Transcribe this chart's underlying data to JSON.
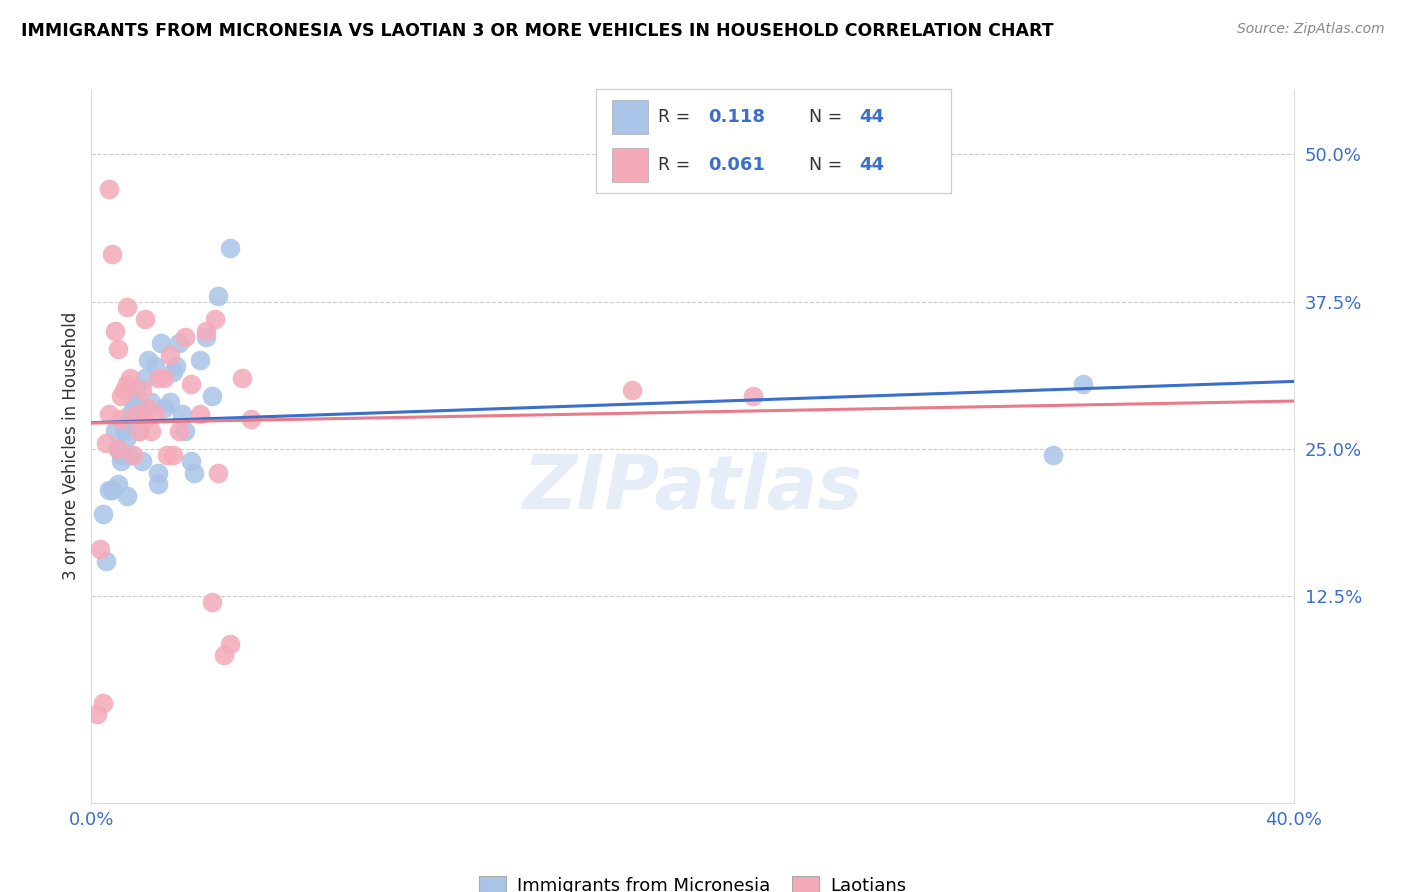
{
  "title": "IMMIGRANTS FROM MICRONESIA VS LAOTIAN 3 OR MORE VEHICLES IN HOUSEHOLD CORRELATION CHART",
  "source": "Source: ZipAtlas.com",
  "ylabel": "3 or more Vehicles in Household",
  "xlim": [
    0.0,
    0.4
  ],
  "ylim": [
    -0.05,
    0.555
  ],
  "yticks": [
    0.125,
    0.25,
    0.375,
    0.5
  ],
  "ytick_labels": [
    "12.5%",
    "25.0%",
    "37.5%",
    "50.0%"
  ],
  "blue_R": 0.118,
  "blue_N": 44,
  "pink_R": 0.061,
  "pink_N": 44,
  "blue_color": "#aac4e8",
  "pink_color": "#f4aab9",
  "blue_line_color": "#3a6fcc",
  "pink_line_color": "#e87a8a",
  "watermark": "ZIPatlas",
  "legend_label_blue": "Immigrants from Micronesia",
  "legend_label_pink": "Laotians",
  "blue_x": [
    0.004,
    0.005,
    0.006,
    0.007,
    0.008,
    0.009,
    0.009,
    0.01,
    0.01,
    0.011,
    0.011,
    0.012,
    0.012,
    0.013,
    0.013,
    0.014,
    0.015,
    0.015,
    0.016,
    0.016,
    0.017,
    0.018,
    0.019,
    0.02,
    0.021,
    0.022,
    0.022,
    0.023,
    0.024,
    0.026,
    0.027,
    0.028,
    0.029,
    0.03,
    0.031,
    0.033,
    0.034,
    0.036,
    0.038,
    0.04,
    0.042,
    0.046,
    0.32,
    0.33
  ],
  "blue_y": [
    0.195,
    0.155,
    0.215,
    0.215,
    0.265,
    0.25,
    0.22,
    0.245,
    0.24,
    0.27,
    0.265,
    0.26,
    0.21,
    0.28,
    0.245,
    0.29,
    0.285,
    0.3,
    0.285,
    0.265,
    0.24,
    0.31,
    0.325,
    0.29,
    0.32,
    0.23,
    0.22,
    0.34,
    0.285,
    0.29,
    0.315,
    0.32,
    0.34,
    0.28,
    0.265,
    0.24,
    0.23,
    0.325,
    0.345,
    0.295,
    0.38,
    0.42,
    0.245,
    0.305
  ],
  "pink_x": [
    0.002,
    0.003,
    0.004,
    0.005,
    0.006,
    0.006,
    0.007,
    0.008,
    0.009,
    0.009,
    0.01,
    0.01,
    0.011,
    0.012,
    0.012,
    0.013,
    0.014,
    0.015,
    0.016,
    0.017,
    0.018,
    0.018,
    0.019,
    0.02,
    0.021,
    0.022,
    0.024,
    0.025,
    0.026,
    0.027,
    0.029,
    0.031,
    0.033,
    0.036,
    0.038,
    0.04,
    0.041,
    0.042,
    0.044,
    0.046,
    0.05,
    0.053,
    0.18,
    0.22
  ],
  "pink_y": [
    0.025,
    0.165,
    0.035,
    0.255,
    0.47,
    0.28,
    0.415,
    0.35,
    0.335,
    0.25,
    0.295,
    0.275,
    0.3,
    0.37,
    0.305,
    0.31,
    0.245,
    0.28,
    0.265,
    0.3,
    0.275,
    0.36,
    0.285,
    0.265,
    0.28,
    0.31,
    0.31,
    0.245,
    0.33,
    0.245,
    0.265,
    0.345,
    0.305,
    0.28,
    0.35,
    0.12,
    0.36,
    0.23,
    0.075,
    0.085,
    0.31,
    0.275,
    0.3,
    0.295
  ]
}
